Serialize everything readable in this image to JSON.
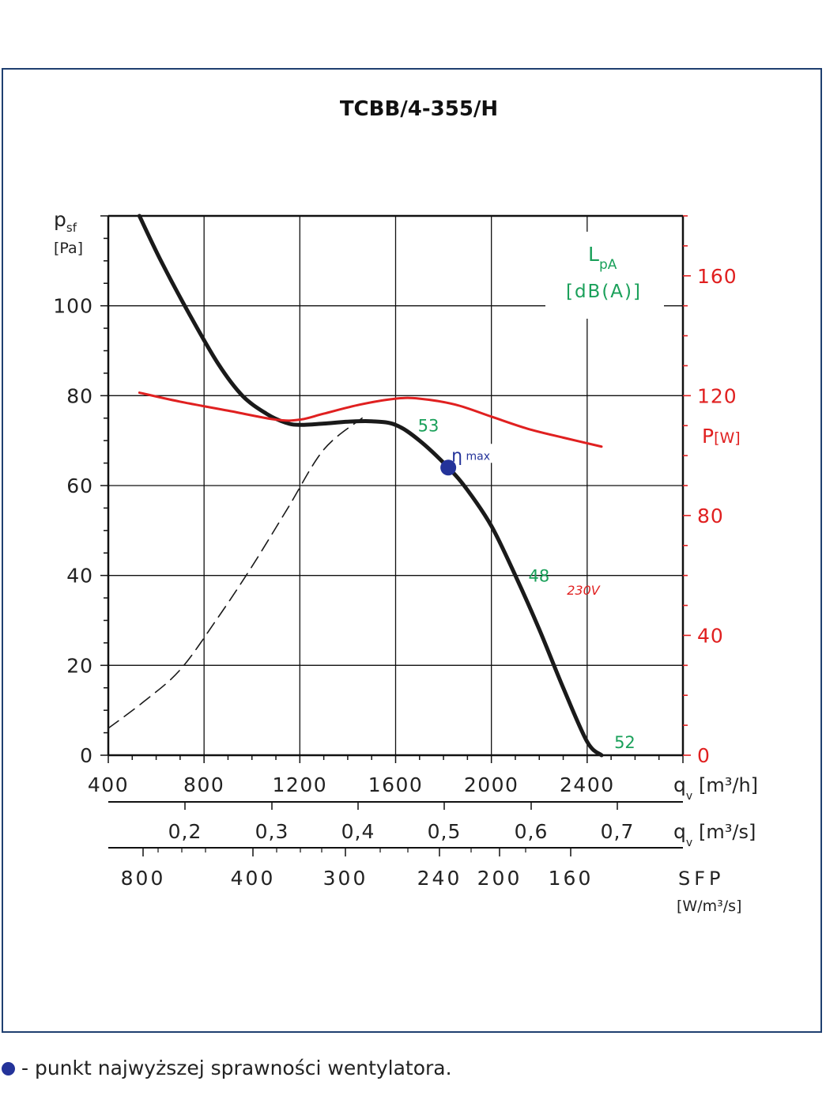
{
  "chart_data": {
    "type": "line",
    "title": "TCBB/4-355/H",
    "x_axes": {
      "flow_m3h": {
        "label": "q",
        "sub": "v",
        "unit": "[m³/h]",
        "ticks": [
          {
            "value": 400,
            "label": "400"
          },
          {
            "value": 800,
            "label": "800"
          },
          {
            "value": 1200,
            "label": "1200"
          },
          {
            "value": 1600,
            "label": "1600"
          },
          {
            "value": 2000,
            "label": "2000"
          },
          {
            "value": 2400,
            "label": "2400"
          }
        ],
        "range": [
          400,
          2800
        ]
      },
      "flow_m3s": {
        "label": "q",
        "sub": "v",
        "unit": "[m³/s]",
        "ticks": [
          {
            "value": 0.2,
            "label": "0,2"
          },
          {
            "value": 0.3,
            "label": "0,3"
          },
          {
            "value": 0.4,
            "label": "0,4"
          },
          {
            "value": 0.5,
            "label": "0,5"
          },
          {
            "value": 0.6,
            "label": "0,6"
          },
          {
            "value": 0.7,
            "label": "0,7"
          }
        ]
      },
      "sfp": {
        "label": "SFP",
        "unit": "[W/m³/s]",
        "ticks": [
          {
            "value": 800,
            "label": "800"
          },
          {
            "value": 400,
            "label": "400"
          },
          {
            "value": 300,
            "label": "300"
          },
          {
            "value": 240,
            "label": "240"
          },
          {
            "value": 200,
            "label": "200"
          },
          {
            "value": 160,
            "label": "160"
          }
        ]
      }
    },
    "y_axes": {
      "pressure": {
        "label": "p",
        "sub": "sf",
        "unit": "[Pa]",
        "range": [
          0,
          120
        ],
        "ticks": [
          {
            "value": 0,
            "label": "0"
          },
          {
            "value": 20,
            "label": "20"
          },
          {
            "value": 40,
            "label": "40"
          },
          {
            "value": 60,
            "label": "60"
          },
          {
            "value": 80,
            "label": "80"
          },
          {
            "value": 100,
            "label": "100"
          }
        ]
      },
      "power": {
        "label": "P",
        "unit": "[W]",
        "range": [
          0,
          180
        ],
        "ticks": [
          {
            "value": 0,
            "label": "0"
          },
          {
            "value": 40,
            "label": "40"
          },
          {
            "value": 80,
            "label": "80"
          },
          {
            "value": 120,
            "label": "120"
          },
          {
            "value": 160,
            "label": "160"
          }
        ]
      }
    },
    "noise_box": {
      "label": "L",
      "sub": "pA",
      "unit": "[dB(A)]"
    },
    "series": [
      {
        "id": "pressure_curve",
        "axis": "pressure",
        "color": "#1a1a1a",
        "style": "solid",
        "x": [
          530,
          620,
          740,
          860,
          960,
          1060,
          1140,
          1200,
          1300,
          1400,
          1500,
          1600,
          1700,
          1820,
          1900,
          2000,
          2100,
          2200,
          2300,
          2400,
          2460
        ],
        "y": [
          120,
          110,
          98,
          87,
          80,
          76,
          74,
          73.5,
          73.8,
          74.2,
          74.3,
          73.5,
          70,
          64,
          59,
          51,
          40,
          28,
          15,
          3,
          0
        ]
      },
      {
        "id": "power_curve",
        "axis": "power",
        "name": "230V",
        "color": "#e02020",
        "style": "solid",
        "x": [
          530,
          700,
          900,
          1100,
          1200,
          1300,
          1450,
          1600,
          1700,
          1850,
          2000,
          2150,
          2300,
          2460
        ],
        "y": [
          121,
          118,
          115,
          112,
          112,
          114,
          117,
          119,
          119,
          117,
          113,
          109,
          106,
          103
        ]
      },
      {
        "id": "system_curve",
        "axis": "pressure",
        "color": "#1a1a1a",
        "style": "dashed",
        "x": [
          400,
          550,
          700,
          850,
          1000,
          1150,
          1300,
          1460
        ],
        "y": [
          6,
          12,
          19,
          30,
          42,
          55,
          68,
          75
        ]
      }
    ],
    "noise_labels": [
      {
        "text": "53",
        "x": 1660,
        "y": 73.5
      },
      {
        "text": "48",
        "x": 2135,
        "y": 40
      },
      {
        "text": "52",
        "x": 2480,
        "y": 3
      }
    ],
    "eta_max": {
      "x": 1820,
      "y": 64,
      "symbol": "η",
      "sub": "max"
    }
  },
  "footnote": "- punkt najwyższej sprawności wentylatora.",
  "colors": {
    "frame": "#1f3f70",
    "green": "#1aa05a",
    "red": "#e02020",
    "point": "#24339a"
  }
}
